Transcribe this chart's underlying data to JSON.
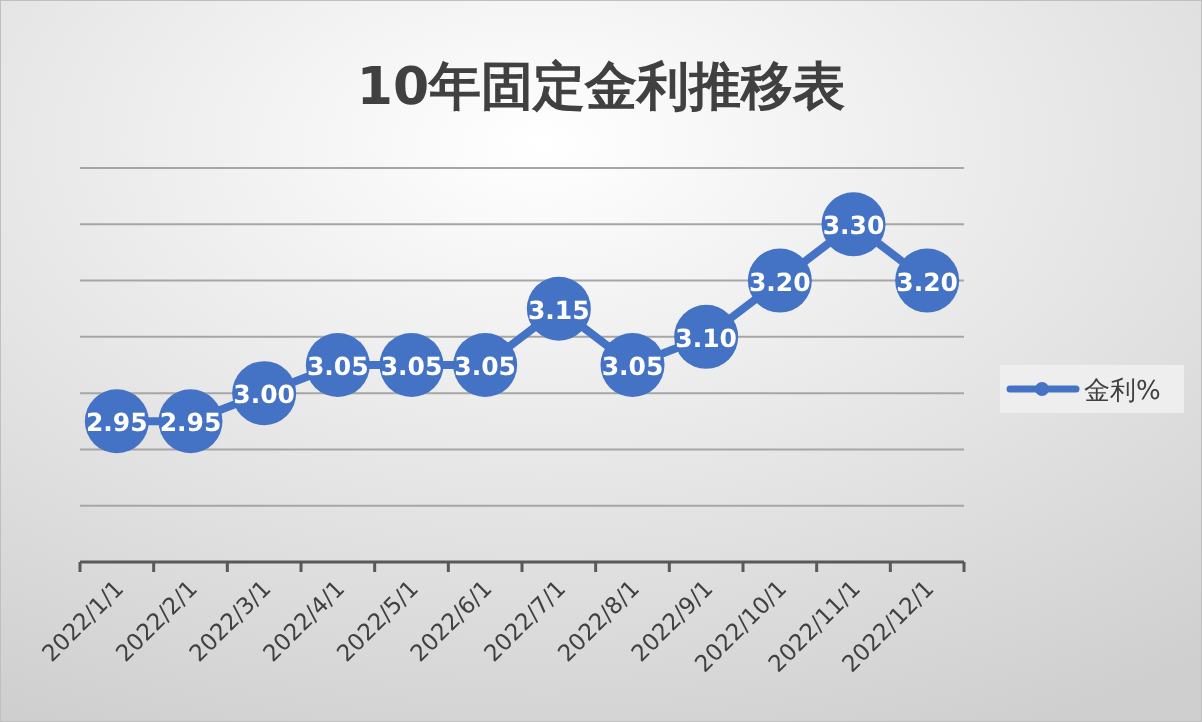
{
  "chart_data": {
    "type": "line",
    "title": "10年固定金利推移表",
    "categories": [
      "2022/1/1",
      "2022/2/1",
      "2022/3/1",
      "2022/4/1",
      "2022/5/1",
      "2022/6/1",
      "2022/7/1",
      "2022/8/1",
      "2022/9/1",
      "2022/10/1",
      "2022/11/1",
      "2022/12/1"
    ],
    "series": [
      {
        "name": "金利%",
        "color": "#4472c4",
        "values": [
          2.95,
          2.95,
          3.0,
          3.05,
          3.05,
          3.05,
          3.15,
          3.05,
          3.1,
          3.2,
          3.3,
          3.2
        ],
        "value_labels": [
          "2.95",
          "2.95",
          "3.00",
          "3.05",
          "3.05",
          "3.05",
          "3.15",
          "3.05",
          "3.10",
          "3.20",
          "3.30",
          "3.20"
        ]
      }
    ],
    "ylim": [
      2.7,
      3.4
    ],
    "yticks": [
      {
        "value": 2.7,
        "label": null
      },
      {
        "value": 2.8,
        "label": null
      },
      {
        "value": 2.9,
        "label": null
      },
      {
        "value": 3.0,
        "label": null
      },
      {
        "value": 3.1,
        "label": null
      },
      {
        "value": 3.2,
        "label": null
      },
      {
        "value": 3.3,
        "label": null
      },
      {
        "value": 3.4,
        "label": null
      }
    ],
    "tick_labels": "x",
    "grid": "y",
    "legend": "right",
    "marker": "circle",
    "line_style": "solid"
  }
}
